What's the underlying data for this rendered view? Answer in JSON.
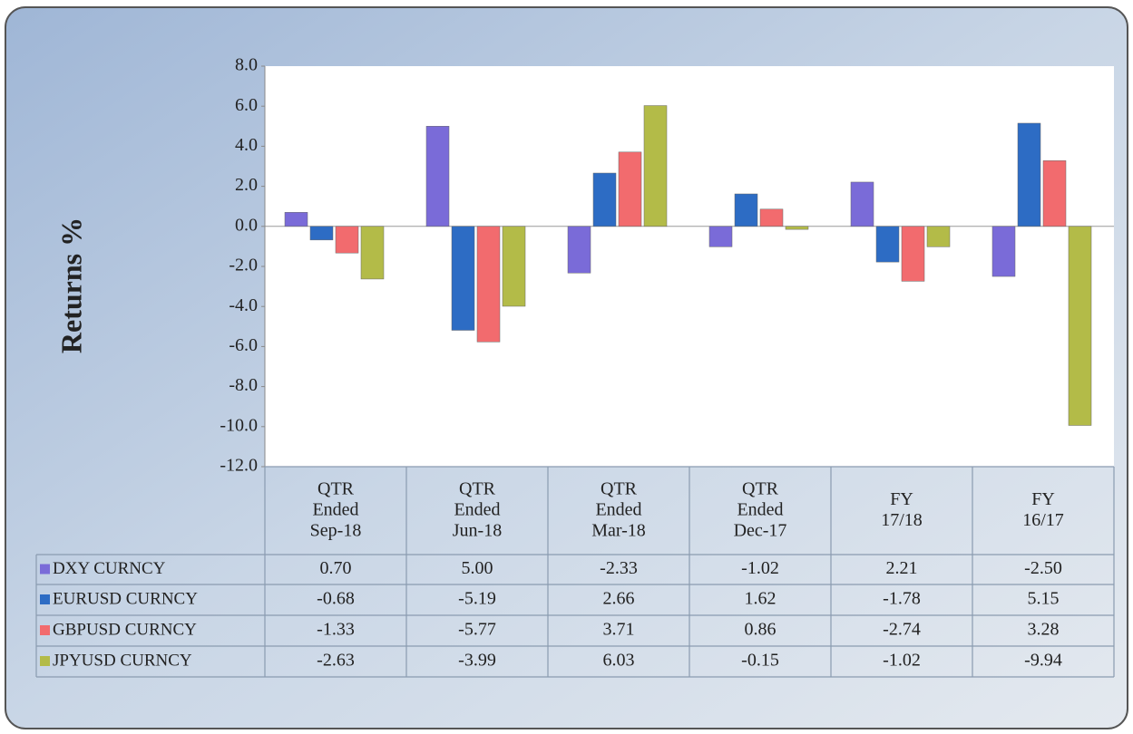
{
  "chart_data": {
    "type": "bar",
    "ylabel": "Returns %",
    "categories": [
      "QTR Ended Sep-18",
      "QTR Ended Jun-18",
      "QTR Ended Mar-18",
      "QTR Ended Dec-17",
      "FY 17/18",
      "FY 16/17"
    ],
    "series": [
      {
        "name": "DXY CURNCY",
        "color": "#7a6bd8",
        "values": [
          0.7,
          5,
          -2.33,
          -1.02,
          2.21,
          -2.5
        ],
        "value_labels": [
          "0.70",
          "5.00",
          "-2.33",
          "-1.02",
          "2.21",
          "-2.50"
        ]
      },
      {
        "name": "EURUSD CURNCY",
        "color": "#2d6cc4",
        "values": [
          -0.68,
          -5.19,
          2.66,
          1.62,
          -1.78,
          5.15
        ],
        "value_labels": [
          "-0.68",
          "-5.19",
          "2.66",
          "1.62",
          "-1.78",
          "5.15"
        ]
      },
      {
        "name": "GBPUSD CURNCY",
        "color": "#f26b6e",
        "values": [
          -1.33,
          -5.77,
          3.71,
          0.86,
          -2.74,
          3.28
        ],
        "value_labels": [
          "-1.33",
          "-5.77",
          "3.71",
          "0.86",
          "-2.74",
          "3.28"
        ]
      },
      {
        "name": "JPYUSD CURNCY",
        "color": "#b3bb48",
        "values": [
          -2.63,
          -3.99,
          6.03,
          -0.15,
          -1.02,
          -9.94
        ],
        "value_labels": [
          "-2.63",
          "-3.99",
          "6.03",
          "-0.15",
          "-1.02",
          "-9.94"
        ]
      }
    ],
    "ylim": [
      -12,
      8
    ],
    "yticks": [
      {
        "value": -12,
        "label": "-12.0"
      },
      {
        "value": -10,
        "label": "-10.0"
      },
      {
        "value": -8,
        "label": "-8.0"
      },
      {
        "value": -6,
        "label": "-6.0"
      },
      {
        "value": -4,
        "label": "-4.0"
      },
      {
        "value": -2,
        "label": "-2.0"
      },
      {
        "value": 0,
        "label": "0.0"
      },
      {
        "value": 2,
        "label": "2.0"
      },
      {
        "value": 4,
        "label": "4.0"
      },
      {
        "value": 6,
        "label": "6.0"
      },
      {
        "value": 8,
        "label": "8.0"
      }
    ],
    "grid": false
  }
}
